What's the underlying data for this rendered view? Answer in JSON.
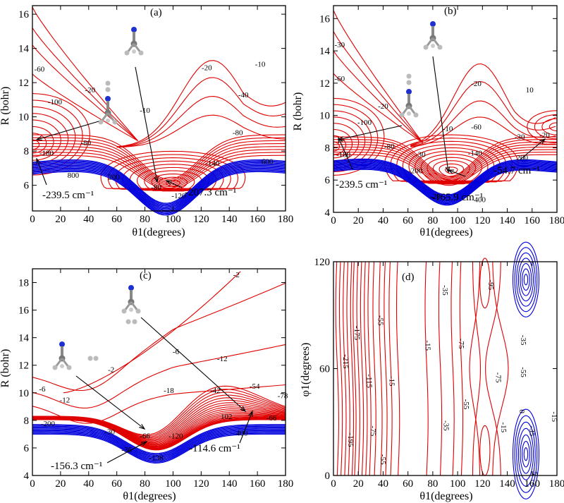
{
  "colors": {
    "attractive": "#e00000",
    "repulsive": "#0000dd",
    "axis": "#000000"
  },
  "chart_data": [
    {
      "type": "contour",
      "panel": "(a)",
      "title": "(a)",
      "xlabel": "θ1(degrees)",
      "ylabel": "R (bohr)",
      "xlim": [
        0,
        180
      ],
      "ylim": [
        4.5,
        16.5
      ],
      "xticks": [
        0,
        20,
        40,
        60,
        80,
        100,
        120,
        140,
        160,
        180
      ],
      "yticks": [
        6,
        8,
        10,
        12,
        14,
        16
      ],
      "contour_labels": [
        {
          "text": "-10",
          "x": 162,
          "y": 13.1
        },
        {
          "text": "-20",
          "x": 124,
          "y": 12.9
        },
        {
          "text": "-40",
          "x": 150,
          "y": 11.3
        },
        {
          "text": "-80",
          "x": 146,
          "y": 9.1
        },
        {
          "text": "-140",
          "x": 128,
          "y": 7.3
        },
        {
          "text": "-10",
          "x": 80,
          "y": 10.4
        },
        {
          "text": "-60",
          "x": 5,
          "y": 12.8
        },
        {
          "text": "-20",
          "x": 41,
          "y": 11.6
        },
        {
          "text": "-100",
          "x": 16,
          "y": 10.9
        },
        {
          "text": "-80",
          "x": 38,
          "y": 8.5
        },
        {
          "text": "-180",
          "x": 10,
          "y": 7.9
        },
        {
          "text": "-80",
          "x": 88,
          "y": 5.9
        },
        {
          "text": "-120",
          "x": 104,
          "y": 5.4
        },
        {
          "text": "800",
          "x": 29,
          "y": 6.6
        },
        {
          "text": "200",
          "x": 58,
          "y": 6.5
        },
        {
          "text": "600",
          "x": 167,
          "y": 7.4
        }
      ],
      "minima": [
        {
          "label": "-239.5 cm⁻¹",
          "theta1": 4,
          "R": 8.8
        },
        {
          "label": "-207.3 cm⁻¹",
          "theta1": 100,
          "R": 6.0
        }
      ]
    },
    {
      "type": "contour",
      "panel": "(b)",
      "title": "(b)",
      "xlabel": "θ1(degrees)",
      "ylabel": "R (bohr)",
      "xlim": [
        0,
        180
      ],
      "ylim": [
        4,
        16.8
      ],
      "xticks": [
        0,
        20,
        40,
        60,
        80,
        100,
        120,
        140,
        160,
        180
      ],
      "yticks": [
        4,
        6,
        8,
        10,
        12,
        14,
        16
      ],
      "contour_labels": [
        {
          "text": "-30",
          "x": 5,
          "y": 14.4
        },
        {
          "text": "-60",
          "x": 5,
          "y": 12.3
        },
        {
          "text": "-20",
          "x": 40,
          "y": 10.6
        },
        {
          "text": "-100",
          "x": 25,
          "y": 9.6
        },
        {
          "text": "-80",
          "x": 45,
          "y": 8.1
        },
        {
          "text": "-180",
          "x": 8,
          "y": 7.6
        },
        {
          "text": "-200",
          "x": 66,
          "y": 6.6
        },
        {
          "text": "-30",
          "x": 70,
          "y": 7.6
        },
        {
          "text": "-10",
          "x": 92,
          "y": 9.2
        },
        {
          "text": "-20",
          "x": 115,
          "y": 12.0
        },
        {
          "text": "10",
          "x": 158,
          "y": 11.6
        },
        {
          "text": "-60",
          "x": 115,
          "y": 9.3
        },
        {
          "text": "-30",
          "x": 150,
          "y": 8.7
        },
        {
          "text": "-140",
          "x": 114,
          "y": 7.7
        },
        {
          "text": "200",
          "x": 152,
          "y": 7.4
        },
        {
          "text": "-20",
          "x": 82,
          "y": 5.0
        },
        {
          "text": "400",
          "x": 118,
          "y": 4.8
        },
        {
          "text": "-20",
          "x": 170,
          "y": 8.8
        }
      ],
      "minima": [
        {
          "label": "-239.5 cm⁻¹",
          "theta1": 4,
          "R": 8.2
        },
        {
          "label": "-165.9 cm⁻¹",
          "theta1": 93,
          "R": 6.5
        },
        {
          "label": "-54.7 cm⁻¹",
          "theta1": 176,
          "R": 9.4
        }
      ]
    },
    {
      "type": "contour",
      "panel": "(c)",
      "title": "(c)",
      "xlabel": "θ1(degrees)",
      "ylabel": "R (bohr)",
      "xlim": [
        0,
        180
      ],
      "ylim": [
        4,
        19
      ],
      "xticks": [
        0,
        20,
        40,
        60,
        80,
        100,
        120,
        140,
        160,
        180
      ],
      "yticks": [
        4,
        6,
        8,
        10,
        12,
        14,
        16,
        18
      ],
      "contour_labels": [
        {
          "text": "-2",
          "x": 145,
          "y": 18.6
        },
        {
          "text": "-6",
          "x": 102,
          "y": 13.0
        },
        {
          "text": "-2",
          "x": 56,
          "y": 11.7
        },
        {
          "text": "-12",
          "x": 135,
          "y": 12.5
        },
        {
          "text": "-6",
          "x": 7,
          "y": 10.3
        },
        {
          "text": "-12",
          "x": 23,
          "y": 9.5
        },
        {
          "text": "-18",
          "x": 97,
          "y": 10.2
        },
        {
          "text": "-42",
          "x": 130,
          "y": 10.2
        },
        {
          "text": "-54",
          "x": 158,
          "y": 10.5
        },
        {
          "text": "-78",
          "x": 178,
          "y": 9.8
        },
        {
          "text": "-30",
          "x": 55,
          "y": 7.2
        },
        {
          "text": "-66",
          "x": 80,
          "y": 6.9
        },
        {
          "text": "102",
          "x": 138,
          "y": 8.3
        },
        {
          "text": "-66",
          "x": 170,
          "y": 8.2
        },
        {
          "text": "-120",
          "x": 102,
          "y": 6.9
        },
        {
          "text": "-36",
          "x": 67,
          "y": 5.9
        },
        {
          "text": "-138",
          "x": 88,
          "y": 5.3
        },
        {
          "text": "-200",
          "x": 11,
          "y": 7.8
        },
        {
          "text": "400",
          "x": 149,
          "y": 7.1
        }
      ],
      "minima": [
        {
          "label": "-156.3 cm⁻¹",
          "theta1": 88,
          "R": 6.4
        },
        {
          "label": "-114.6 cm⁻¹",
          "theta1": 178,
          "R": 8.2
        }
      ]
    },
    {
      "type": "contour",
      "panel": "(d)",
      "title": "(d)",
      "xlabel": "θ1(degrees)",
      "ylabel": "φ1(degrees)",
      "xlim": [
        0,
        180
      ],
      "ylim": [
        0,
        120
      ],
      "xticks": [
        0,
        20,
        40,
        60,
        80,
        100,
        120,
        140,
        160,
        180
      ],
      "yticks": [
        0,
        60,
        120
      ],
      "contour_labels": [
        {
          "text": "-215",
          "x": 8,
          "y": 64
        },
        {
          "text": "-175",
          "x": 17,
          "y": 80
        },
        {
          "text": "-195",
          "x": 12,
          "y": 20
        },
        {
          "text": "-115",
          "x": 27,
          "y": 53
        },
        {
          "text": "-75",
          "x": 30,
          "y": 25
        },
        {
          "text": "-55",
          "x": 36,
          "y": 87
        },
        {
          "text": "-55",
          "x": 38,
          "y": 9
        },
        {
          "text": "-15",
          "x": 45,
          "y": 53
        },
        {
          "text": "-15",
          "x": 74,
          "y": 73
        },
        {
          "text": "-35",
          "x": 88,
          "y": 104
        },
        {
          "text": "-35",
          "x": 89,
          "y": 28
        },
        {
          "text": "-75",
          "x": 101,
          "y": 74
        },
        {
          "text": "-55",
          "x": 105,
          "y": 40
        },
        {
          "text": "-95",
          "x": 125,
          "y": 107
        },
        {
          "text": "-75",
          "x": 131,
          "y": 55
        },
        {
          "text": "-35",
          "x": 151,
          "y": 76
        },
        {
          "text": "-55",
          "x": 151,
          "y": 58
        },
        {
          "text": "-15",
          "x": 135,
          "y": 27
        },
        {
          "text": "0",
          "x": 150,
          "y": 36
        },
        {
          "text": "-15",
          "x": 176,
          "y": 33
        },
        {
          "text": "-35",
          "x": 158,
          "y": 25
        },
        {
          "text": "-5",
          "x": 160,
          "y": 2
        }
      ],
      "minima": []
    }
  ]
}
